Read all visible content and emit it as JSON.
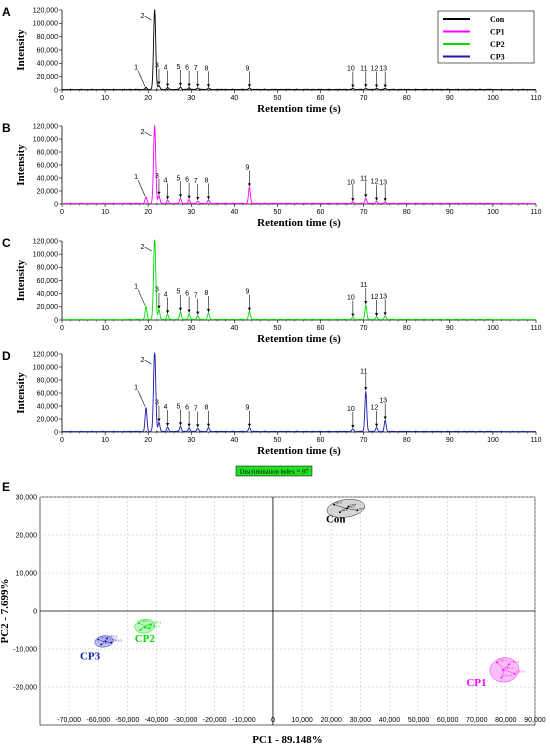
{
  "chromatograms": {
    "x_ticks": [
      0,
      10,
      20,
      30,
      40,
      50,
      60,
      70,
      80,
      90,
      100,
      110
    ],
    "y_ticks": [
      0,
      20000,
      40000,
      60000,
      80000,
      100000,
      120000
    ],
    "y_tick_labels": [
      "0",
      "20,000",
      "40,000",
      "60,000",
      "80,000",
      "100,000",
      "120,000"
    ],
    "xlim": [
      0,
      110
    ],
    "ylim": [
      0,
      120000
    ],
    "xlabel": "Retention time (s)",
    "ylabel": "Intensity",
    "legend": [
      {
        "name": "Con",
        "color": "#000000"
      },
      {
        "name": "CP1",
        "color": "#ff00ff"
      },
      {
        "name": "CP2",
        "color": "#00dd00"
      },
      {
        "name": "CP3",
        "color": "#1a1aa8"
      }
    ],
    "peak_labels": [
      "1",
      "2",
      "3",
      "4",
      "5",
      "6",
      "7",
      "8",
      "9",
      "10",
      "11",
      "12",
      "13"
    ],
    "peak_times": [
      19.5,
      21.5,
      22.5,
      24.5,
      27.5,
      29.5,
      31.5,
      34,
      43.5,
      67.5,
      70.5,
      73,
      75
    ]
  },
  "chart_data": [
    {
      "type": "line",
      "panel": "A",
      "series": "Con",
      "color": "#000000",
      "x": [
        19.5,
        21.5,
        22.5,
        24.5,
        27.5,
        29.5,
        31.5,
        34,
        43.5,
        67.5,
        70.5,
        73,
        75
      ],
      "y": [
        3000,
        120000,
        6000,
        3000,
        4000,
        3000,
        2500,
        2000,
        2000,
        1500,
        2000,
        1500,
        1500
      ],
      "xlim": [
        0,
        110
      ],
      "ylim": [
        0,
        120000
      ],
      "xlabel": "Retention time (s)",
      "ylabel": "Intensity"
    },
    {
      "type": "line",
      "panel": "B",
      "series": "CP1",
      "color": "#ff00ff",
      "x": [
        19.5,
        21.5,
        22.5,
        24.5,
        27.5,
        29.5,
        31.5,
        34,
        43.5,
        67.5,
        70.5,
        73,
        75
      ],
      "y": [
        10000,
        120000,
        12000,
        5000,
        8000,
        6000,
        4000,
        5000,
        25000,
        2000,
        8000,
        3000,
        2000
      ],
      "xlim": [
        0,
        110
      ],
      "ylim": [
        0,
        120000
      ],
      "xlabel": "Retention time (s)",
      "ylabel": "Intensity"
    },
    {
      "type": "line",
      "panel": "C",
      "series": "CP2",
      "color": "#00dd00",
      "x": [
        19.5,
        21.5,
        22.5,
        24.5,
        27.5,
        29.5,
        31.5,
        34,
        43.5,
        67.5,
        70.5,
        73,
        75
      ],
      "y": [
        20000,
        125000,
        15000,
        8000,
        12000,
        9000,
        6000,
        10000,
        12000,
        3000,
        22000,
        4000,
        5000
      ],
      "xlim": [
        0,
        110
      ],
      "ylim": [
        0,
        120000
      ],
      "xlabel": "Retention time (s)",
      "ylabel": "Intensity"
    },
    {
      "type": "line",
      "panel": "D",
      "series": "CP3",
      "color": "#1a1aa8",
      "x": [
        19.5,
        21.5,
        22.5,
        24.5,
        27.5,
        29.5,
        31.5,
        34,
        43.5,
        67.5,
        70.5,
        73,
        75
      ],
      "y": [
        37000,
        125000,
        14000,
        7000,
        8000,
        6000,
        5000,
        6000,
        6000,
        4000,
        62000,
        6000,
        17000
      ],
      "xlim": [
        0,
        110
      ],
      "ylim": [
        0,
        120000
      ],
      "xlabel": "Retention time (s)",
      "ylabel": "Intensity"
    },
    {
      "type": "scatter",
      "panel": "E",
      "xlabel": "PC1 - 89.148%",
      "ylabel": "PC2 - 7.699%",
      "xlim": [
        -80000,
        90000
      ],
      "ylim": [
        -30000,
        30000
      ],
      "x_ticks": [
        -70000,
        -60000,
        -50000,
        -40000,
        -30000,
        -20000,
        -10000,
        0,
        10000,
        20000,
        30000,
        40000,
        50000,
        60000,
        70000,
        80000,
        90000
      ],
      "x_tick_labels": [
        "-70,000",
        "-60,000",
        "-50,000",
        "-40,000",
        "-30,000",
        "-20,000",
        "-10,000",
        "0",
        "10,000",
        "20,000",
        "30,000",
        "40,000",
        "50,000",
        "60,000",
        "70,000",
        "80,000",
        "90,000"
      ],
      "y_ticks": [
        -20000,
        -10000,
        0,
        10000,
        20000,
        30000
      ],
      "y_tick_labels": [
        "-20,000",
        "-10,000",
        "0",
        "10,000",
        "20,000",
        "30,000"
      ],
      "annotation": "Discrimination index = 97",
      "groups": [
        {
          "name": "Con",
          "color": "#000000",
          "ellipse_color": "#c8c8c8",
          "cx": 25000,
          "cy": 27000,
          "rx": 6500,
          "ry": 2300,
          "points": [
            {
              "x": 21000,
              "y": 28000,
              "label": "cn-3"
            },
            {
              "x": 26000,
              "y": 27500,
              "label": "cn-4"
            },
            {
              "x": 29000,
              "y": 26500,
              "label": "cn-5"
            },
            {
              "x": 23000,
              "y": 26000,
              "label": "cn-1"
            },
            {
              "x": 25500,
              "y": 27000,
              "label": "cn-2"
            }
          ]
        },
        {
          "name": "CP1",
          "color": "#ff00ff",
          "ellipse_color": "#f6a8f6",
          "cx": 79500,
          "cy": -15500,
          "rx": 5000,
          "ry": 3200,
          "points": [
            {
              "x": 77000,
              "y": -13500,
              "label": "CP1-1"
            },
            {
              "x": 81000,
              "y": -14000,
              "label": "CP1-2"
            },
            {
              "x": 83000,
              "y": -16500,
              "label": "CP1-3"
            },
            {
              "x": 78500,
              "y": -17500,
              "label": "CP1-4"
            },
            {
              "x": 79000,
              "y": -15500,
              "label": "CP1-5"
            }
          ]
        },
        {
          "name": "CP2",
          "color": "#00dd00",
          "ellipse_color": "#a8f0a8",
          "cx": -44000,
          "cy": -4000,
          "rx": 3500,
          "ry": 1800,
          "points": [
            {
              "x": -46000,
              "y": -3200,
              "label": "CP2-1"
            },
            {
              "x": -42000,
              "y": -3500,
              "label": "CP2-3"
            },
            {
              "x": -44000,
              "y": -4200,
              "label": "CP2-2"
            },
            {
              "x": -45500,
              "y": -5000,
              "label": "CP2-4"
            },
            {
              "x": -42500,
              "y": -4600,
              "label": "CP2-5"
            }
          ]
        },
        {
          "name": "CP3",
          "color": "#1a1aa8",
          "ellipse_color": "#a8a8ec",
          "cx": -58000,
          "cy": -8000,
          "rx": 3200,
          "ry": 1500,
          "points": [
            {
              "x": -60000,
              "y": -7500,
              "label": "CP3-1"
            },
            {
              "x": -57000,
              "y": -7200,
              "label": "CP3-2"
            },
            {
              "x": -55500,
              "y": -8300,
              "label": "CP3-3"
            },
            {
              "x": -59000,
              "y": -8800,
              "label": "CP3-4"
            },
            {
              "x": -57500,
              "y": -8000,
              "label": "CP3-5"
            }
          ]
        }
      ]
    }
  ],
  "panel_letters": [
    "A",
    "B",
    "C",
    "D",
    "E"
  ]
}
